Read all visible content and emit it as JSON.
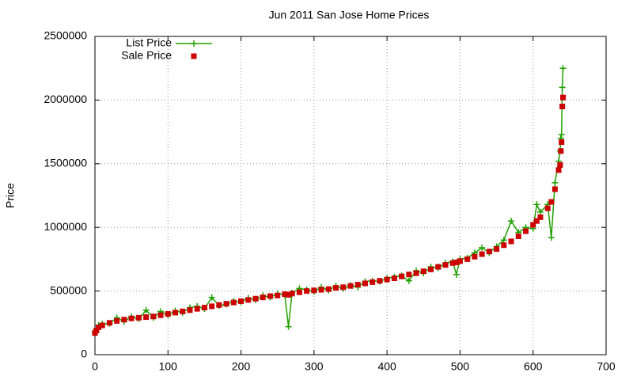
{
  "chart_data": {
    "type": "line_scatter",
    "title": "Jun 2011 San Jose Home Prices",
    "ylabel": "Price",
    "x": [
      0,
      2,
      5,
      10,
      20,
      30,
      40,
      50,
      60,
      70,
      80,
      90,
      100,
      110,
      120,
      130,
      140,
      150,
      160,
      170,
      180,
      190,
      200,
      210,
      220,
      230,
      240,
      250,
      260,
      265,
      270,
      280,
      290,
      300,
      310,
      320,
      330,
      340,
      350,
      360,
      370,
      380,
      390,
      400,
      410,
      420,
      430,
      440,
      450,
      460,
      470,
      480,
      490,
      495,
      500,
      510,
      520,
      530,
      540,
      550,
      560,
      570,
      580,
      590,
      600,
      605,
      610,
      620,
      625,
      630,
      635,
      637,
      638,
      639,
      640,
      641
    ],
    "series": [
      {
        "name": "List Price",
        "color": "#20a000",
        "marker": "plus",
        "line": true,
        "values": [
          180000,
          200000,
          230000,
          240000,
          245000,
          290000,
          260000,
          300000,
          280000,
          350000,
          290000,
          340000,
          310000,
          345000,
          330000,
          370000,
          380000,
          360000,
          450000,
          385000,
          395000,
          420000,
          415000,
          445000,
          430000,
          465000,
          450000,
          480000,
          470000,
          220000,
          485000,
          520000,
          510000,
          495000,
          530000,
          505000,
          540000,
          520000,
          545000,
          530000,
          575000,
          580000,
          575000,
          600000,
          610000,
          620000,
          580000,
          660000,
          640000,
          690000,
          680000,
          720000,
          730000,
          630000,
          750000,
          760000,
          800000,
          840000,
          800000,
          850000,
          900000,
          1050000,
          960000,
          1000000,
          990000,
          1180000,
          1120000,
          1180000,
          920000,
          1350000,
          1520000,
          1600000,
          1700000,
          1730000,
          2100000,
          2250000
        ]
      },
      {
        "name": "Sale Price",
        "color": "#cc0000",
        "marker": "square",
        "line": false,
        "values": [
          170000,
          190000,
          215000,
          230000,
          250000,
          265000,
          275000,
          285000,
          290000,
          295000,
          300000,
          310000,
          320000,
          330000,
          340000,
          350000,
          360000,
          370000,
          380000,
          390000,
          400000,
          410000,
          420000,
          430000,
          440000,
          450000,
          460000,
          465000,
          475000,
          470000,
          480000,
          490000,
          500000,
          505000,
          510000,
          515000,
          525000,
          530000,
          540000,
          550000,
          560000,
          570000,
          580000,
          590000,
          600000,
          615000,
          630000,
          640000,
          655000,
          670000,
          690000,
          705000,
          720000,
          725000,
          735000,
          750000,
          770000,
          790000,
          810000,
          830000,
          860000,
          890000,
          930000,
          970000,
          1020000,
          1050000,
          1080000,
          1150000,
          1200000,
          1300000,
          1450000,
          1490000,
          1600000,
          1670000,
          1950000,
          2020000
        ]
      }
    ],
    "xlim": [
      0,
      700
    ],
    "xticks": [
      0,
      100,
      200,
      300,
      400,
      500,
      600,
      700
    ],
    "ylim": [
      0,
      2500000
    ],
    "yticks": [
      0,
      500000,
      1000000,
      1500000,
      2000000,
      2500000
    ],
    "grid": true,
    "legend": "top-left"
  }
}
